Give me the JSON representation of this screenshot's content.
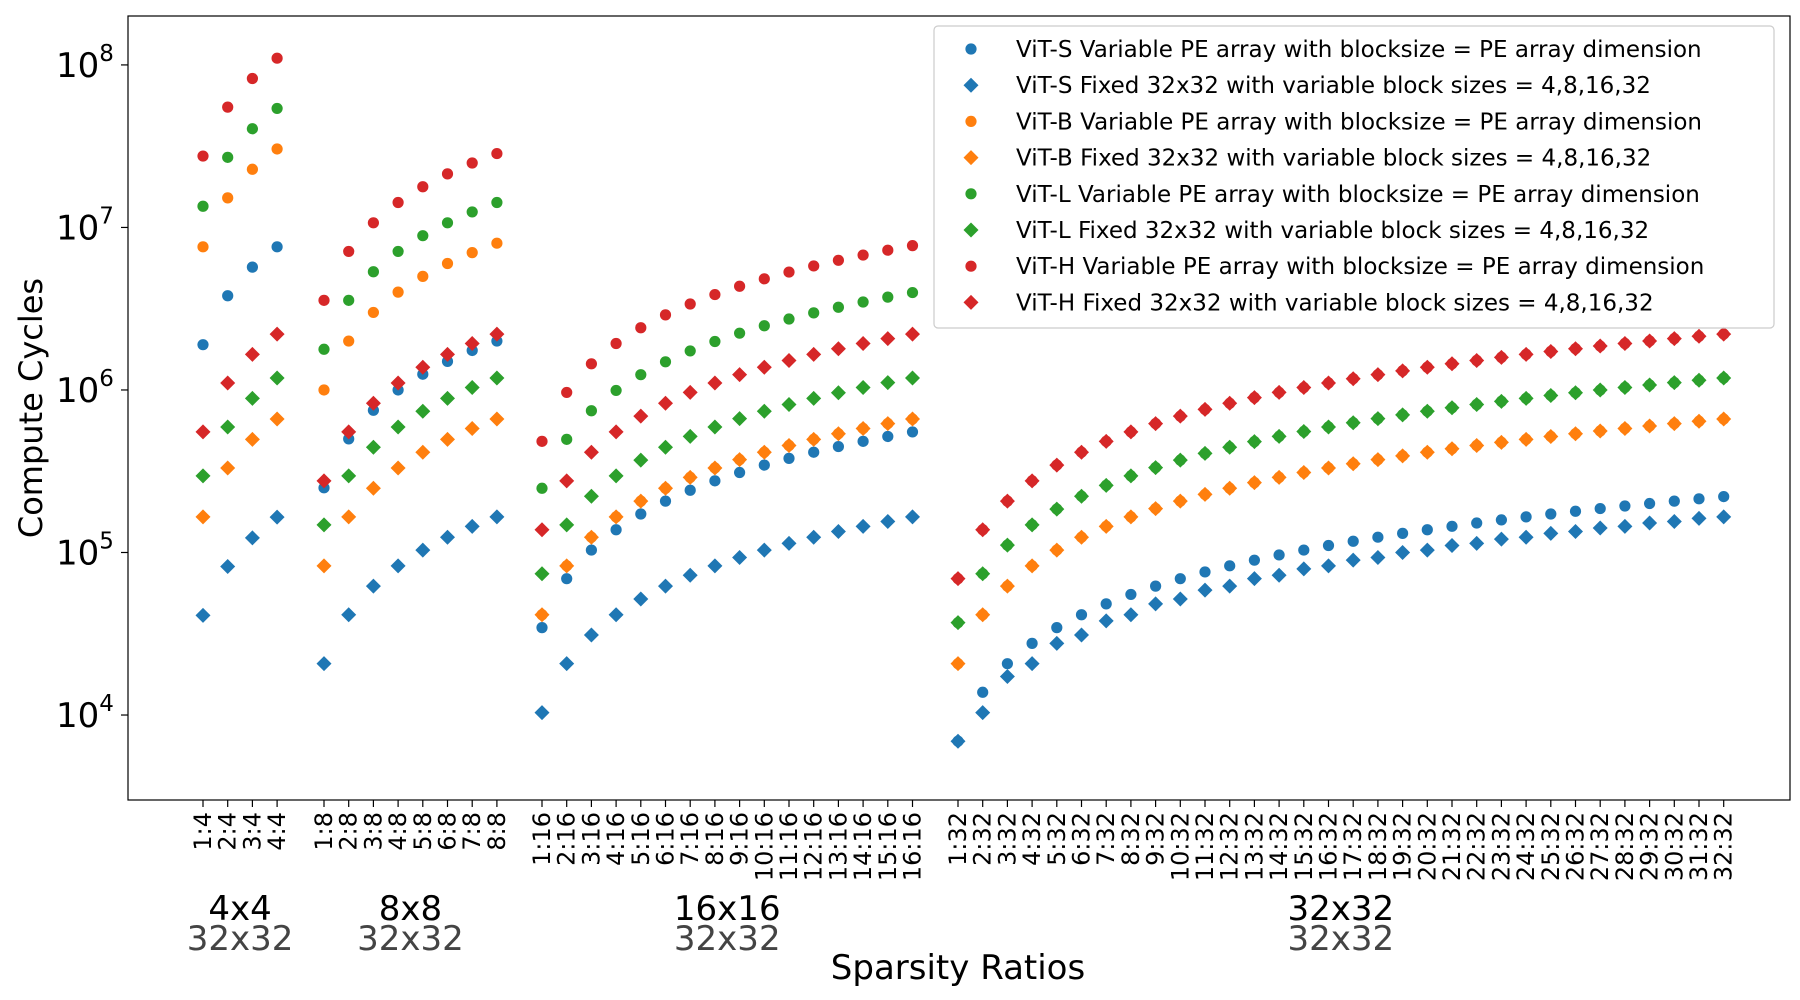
{
  "chart_data": {
    "type": "scatter",
    "title": "",
    "xlabel": "Sparsity Ratios",
    "ylabel": "Compute Cycles",
    "yscale": "log",
    "ylim": [
      3000,
      200000000
    ],
    "grid": false,
    "legend_position": "top-right",
    "y_ticks": [
      {
        "value": 10000,
        "base": "10",
        "exp": "4"
      },
      {
        "value": 100000,
        "base": "10",
        "exp": "5"
      },
      {
        "value": 1000000,
        "base": "10",
        "exp": "6"
      },
      {
        "value": 10000000,
        "base": "10",
        "exp": "7"
      },
      {
        "value": 100000000,
        "base": "10",
        "exp": "8"
      }
    ],
    "groups": [
      {
        "variable_pe_label": "4x4",
        "fixed_pe_label": "32x32",
        "block": 4,
        "categories": [
          "1:4",
          "2:4",
          "3:4",
          "4:4"
        ]
      },
      {
        "variable_pe_label": "8x8",
        "fixed_pe_label": "32x32",
        "block": 8,
        "categories": [
          "1:8",
          "2:8",
          "3:8",
          "4:8",
          "5:8",
          "6:8",
          "7:8",
          "8:8"
        ]
      },
      {
        "variable_pe_label": "16x16",
        "fixed_pe_label": "32x32",
        "block": 16,
        "categories": [
          "1:16",
          "2:16",
          "3:16",
          "4:16",
          "5:16",
          "6:16",
          "7:16",
          "8:16",
          "9:16",
          "10:16",
          "11:16",
          "12:16",
          "13:16",
          "14:16",
          "15:16",
          "16:16"
        ]
      },
      {
        "variable_pe_label": "32x32",
        "fixed_pe_label": "32x32",
        "block": 32,
        "categories": [
          "1:32",
          "2:32",
          "3:32",
          "4:32",
          "5:32",
          "6:32",
          "7:32",
          "8:32",
          "9:32",
          "10:32",
          "11:32",
          "12:32",
          "13:32",
          "14:32",
          "15:32",
          "16:32",
          "17:32",
          "18:32",
          "19:32",
          "20:32",
          "21:32",
          "22:32",
          "23:32",
          "24:32",
          "25:32",
          "26:32",
          "27:32",
          "28:32",
          "29:32",
          "30:32",
          "31:32",
          "32:32"
        ]
      }
    ],
    "series": [
      {
        "name": "ViT-S Variable PE array with blocksize = PE array dimension",
        "model": "ViT-S",
        "marker": "circle",
        "color": "#1f77b4",
        "values": [
          [
            1900000,
            3800000,
            5700000,
            7600000
          ],
          [
            250000,
            500000,
            750000,
            1000000,
            1250000,
            1500000,
            1750000,
            2000000
          ],
          [
            34500,
            69000,
            103500,
            138000,
            172500,
            207000,
            241500,
            276000,
            310500,
            345000,
            379500,
            414000,
            448500,
            483000,
            517500,
            552000
          ],
          [
            6900,
            13800,
            20700,
            27600,
            34500,
            41400,
            48300,
            55200,
            62100,
            69000,
            75900,
            82800,
            89700,
            96600,
            103500,
            110400,
            117300,
            124200,
            131100,
            138000,
            144900,
            151800,
            158700,
            165600,
            172500,
            179400,
            186300,
            193200,
            200100,
            207000,
            213900,
            220800
          ]
        ]
      },
      {
        "name": "ViT-S Fixed 32x32 with variable block sizes = 4,8,16,32",
        "model": "ViT-S",
        "marker": "diamond",
        "color": "#1f77b4",
        "values": [
          [
            41000,
            82000,
            123000,
            165000
          ],
          [
            20700,
            41400,
            62100,
            82800,
            103500,
            124200,
            144900,
            165600
          ],
          [
            10350,
            20700,
            31050,
            41400,
            51750,
            62100,
            72450,
            82800,
            93150,
            103500,
            113850,
            124200,
            134550,
            144900,
            155250,
            165600
          ],
          [
            6900,
            10350,
            17250,
            20700,
            27600,
            31050,
            37950,
            41400,
            48300,
            51750,
            58650,
            62100,
            69000,
            72450,
            79350,
            82800,
            89700,
            93150,
            100050,
            103500,
            110400,
            113850,
            120750,
            124200,
            131100,
            134550,
            141450,
            144900,
            151800,
            155250,
            162150,
            165600
          ]
        ]
      },
      {
        "name": "ViT-B Variable PE array with blocksize = PE array dimension",
        "model": "ViT-B",
        "marker": "circle",
        "color": "#ff7f0e",
        "values": [
          [
            7600000,
            15200000,
            22800000,
            30400000
          ],
          [
            1000000,
            2000000,
            3000000,
            4000000,
            5000000,
            6000000,
            7000000,
            8000000
          ],
          [
            41400,
            82800,
            124200,
            165600,
            207000,
            248400,
            289800,
            331200,
            372600,
            414000,
            455400,
            496800,
            538200,
            579600,
            621000,
            662400
          ],
          [
            20700,
            41400,
            62100,
            82800,
            103500,
            124200,
            144900,
            165600,
            186300,
            207000,
            227700,
            248400,
            269100,
            289800,
            310500,
            331200,
            351900,
            372600,
            393300,
            414000,
            434700,
            455400,
            476100,
            496800,
            517500,
            538200,
            558900,
            579600,
            600300,
            621000,
            641700,
            662400
          ]
        ]
      },
      {
        "name": "ViT-B Fixed 32x32 with variable block sizes = 4,8,16,32",
        "model": "ViT-B",
        "marker": "diamond",
        "color": "#ff7f0e",
        "values": [
          [
            165600,
            331200,
            496800,
            662400
          ],
          [
            82800,
            165600,
            248400,
            331200,
            414000,
            496800,
            579600,
            662400
          ],
          [
            41400,
            82800,
            124200,
            165600,
            207000,
            248400,
            289800,
            331200,
            372600,
            414000,
            455400,
            496800,
            538200,
            579600,
            621000,
            662400
          ],
          [
            20700,
            41400,
            62100,
            82800,
            103500,
            124200,
            144900,
            165600,
            186300,
            207000,
            227700,
            248400,
            269100,
            289800,
            310500,
            331200,
            351900,
            372600,
            393300,
            414000,
            434700,
            455400,
            476100,
            496800,
            517500,
            538200,
            558900,
            579600,
            600300,
            621000,
            641700,
            662400
          ]
        ]
      },
      {
        "name": "ViT-L Variable PE array with blocksize = PE array dimension",
        "model": "ViT-L",
        "marker": "circle",
        "color": "#2ca02c",
        "values": [
          [
            13500000,
            27000000,
            40500000,
            54000000
          ],
          [
            1780000,
            3560000,
            5340000,
            7120000,
            8900000,
            10680000,
            12460000,
            14240000
          ],
          [
            248400,
            496800,
            745200,
            993600,
            1242000,
            1490400,
            1738800,
            1987200,
            2235600,
            2484000,
            2732400,
            2980800,
            3229200,
            3477600,
            3726000,
            3974400
          ],
          [
            37000,
            74000,
            111000,
            148000,
            185000,
            222000,
            259000,
            296000,
            333000,
            370000,
            407000,
            444000,
            481000,
            518000,
            555000,
            592000,
            629000,
            666000,
            703000,
            740000,
            777000,
            814000,
            851000,
            888000,
            925000,
            962000,
            999000,
            1036000,
            1073000,
            1110000,
            1147000,
            1184000
          ]
        ]
      },
      {
        "name": "ViT-L Fixed 32x32 with variable block sizes = 4,8,16,32",
        "model": "ViT-L",
        "marker": "diamond",
        "color": "#2ca02c",
        "values": [
          [
            296000,
            592000,
            888000,
            1184000
          ],
          [
            148000,
            296000,
            444000,
            592000,
            740000,
            888000,
            1036000,
            1184000
          ],
          [
            74000,
            148000,
            222000,
            296000,
            370000,
            444000,
            518000,
            592000,
            666000,
            740000,
            814000,
            888000,
            962000,
            1036000,
            1110000,
            1184000
          ],
          [
            37000,
            74000,
            111000,
            148000,
            185000,
            222000,
            259000,
            296000,
            333000,
            370000,
            407000,
            444000,
            481000,
            518000,
            555000,
            592000,
            629000,
            666000,
            703000,
            740000,
            777000,
            814000,
            851000,
            888000,
            925000,
            962000,
            999000,
            1036000,
            1073000,
            1110000,
            1147000,
            1184000
          ]
        ]
      },
      {
        "name": "ViT-H Variable PE array with blocksize = PE array dimension",
        "model": "ViT-H",
        "marker": "circle",
        "color": "#d62728",
        "values": [
          [
            27500000,
            55000000,
            82500000,
            110000000
          ],
          [
            3560000,
            7120000,
            10680000,
            14240000,
            17800000,
            21360000,
            24920000,
            28480000
          ],
          [
            483000,
            966000,
            1449000,
            1932000,
            2415000,
            2898000,
            3381000,
            3864000,
            4347000,
            4830000,
            5313000,
            5796000,
            6279000,
            6762000,
            7245000,
            7728000
          ],
          [
            69000,
            138000,
            207000,
            276000,
            345000,
            414000,
            483000,
            552000,
            621000,
            690000,
            759000,
            828000,
            897000,
            966000,
            1035000,
            1104000,
            1173000,
            1242000,
            1311000,
            1380000,
            1449000,
            1518000,
            1587000,
            1656000,
            1725000,
            1794000,
            1863000,
            1932000,
            2001000,
            2070000,
            2139000,
            2208000
          ]
        ]
      },
      {
        "name": "ViT-H Fixed 32x32 with variable block sizes = 4,8,16,32",
        "model": "ViT-H",
        "marker": "diamond",
        "color": "#d62728",
        "values": [
          [
            552000,
            1104000,
            1656000,
            2208000
          ],
          [
            276000,
            552000,
            828000,
            1104000,
            1380000,
            1656000,
            1932000,
            2208000
          ],
          [
            138000,
            276000,
            414000,
            552000,
            690000,
            828000,
            966000,
            1104000,
            1242000,
            1380000,
            1518000,
            1656000,
            1794000,
            1932000,
            2070000,
            2208000
          ],
          [
            69000,
            138000,
            207000,
            276000,
            345000,
            414000,
            483000,
            552000,
            621000,
            690000,
            759000,
            828000,
            897000,
            966000,
            1035000,
            1104000,
            1173000,
            1242000,
            1311000,
            1380000,
            1449000,
            1518000,
            1587000,
            1656000,
            1725000,
            1794000,
            1863000,
            1932000,
            2001000,
            2070000,
            2139000,
            2208000
          ]
        ]
      }
    ]
  }
}
